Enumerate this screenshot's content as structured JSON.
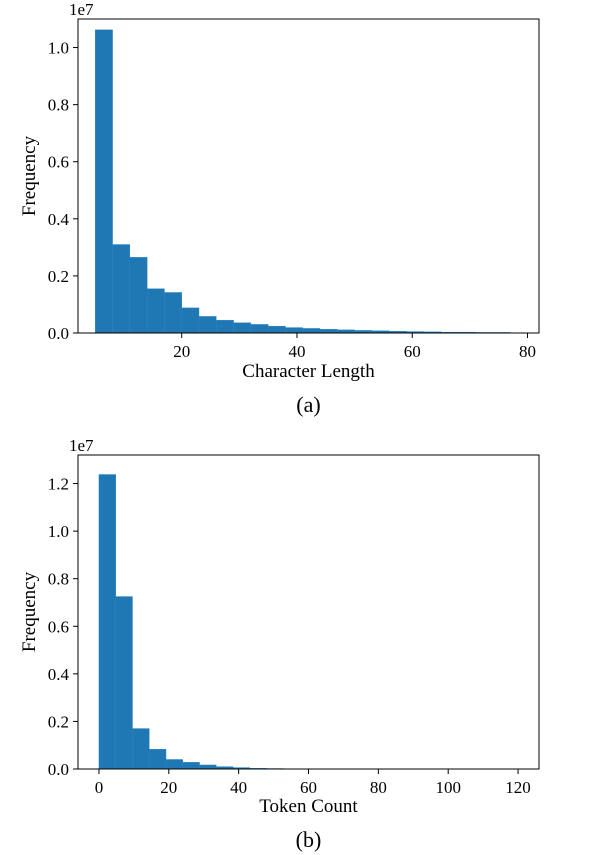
{
  "chart_data": [
    {
      "type": "bar",
      "panel_label": "(a)",
      "offset_text": "1e7",
      "xlabel": "Character Length",
      "ylabel": "Frequency",
      "xlim": [
        2,
        82
      ],
      "ylim": [
        0,
        1.1
      ],
      "bin_width": 3.0,
      "x_ticks": [
        20,
        40,
        60,
        80
      ],
      "y_ticks": [
        0.0,
        0.2,
        0.4,
        0.6,
        0.8,
        1.0
      ],
      "y_tick_labels": [
        "0.0",
        "0.2",
        "0.4",
        "0.6",
        "0.8",
        "1.0"
      ],
      "bar_color": "#1f77b4",
      "bins": [
        5,
        8,
        11,
        14,
        17,
        20,
        23,
        26,
        29,
        32,
        35,
        38,
        41,
        44,
        47,
        50,
        53,
        56,
        59,
        62,
        65,
        68,
        71,
        74,
        77
      ],
      "values": [
        1.062,
        0.31,
        0.265,
        0.155,
        0.142,
        0.088,
        0.058,
        0.045,
        0.036,
        0.03,
        0.024,
        0.019,
        0.016,
        0.013,
        0.011,
        0.009,
        0.008,
        0.006,
        0.005,
        0.004,
        0.003,
        0.003,
        0.002,
        0.002,
        0.001
      ]
    },
    {
      "type": "bar",
      "panel_label": "(b)",
      "offset_text": "1e7",
      "xlabel": "Token Count",
      "ylabel": "Frequency",
      "xlim": [
        -6,
        126
      ],
      "ylim": [
        0,
        1.32
      ],
      "bin_width": 4.8,
      "x_ticks": [
        0,
        20,
        40,
        60,
        80,
        100,
        120
      ],
      "y_ticks": [
        0.0,
        0.2,
        0.4,
        0.6,
        0.8,
        1.0,
        1.2
      ],
      "y_tick_labels": [
        "0.0",
        "0.2",
        "0.4",
        "0.6",
        "0.8",
        "1.0",
        "1.2"
      ],
      "bar_color": "#1f77b4",
      "bins": [
        0,
        4.8,
        9.6,
        14.4,
        19.2,
        24.0,
        28.8,
        33.6,
        38.4,
        43.2,
        48.0,
        52.8,
        57.6
      ],
      "values": [
        1.238,
        0.725,
        0.17,
        0.083,
        0.04,
        0.028,
        0.017,
        0.01,
        0.006,
        0.003,
        0.002,
        0.001,
        0.001
      ]
    }
  ]
}
